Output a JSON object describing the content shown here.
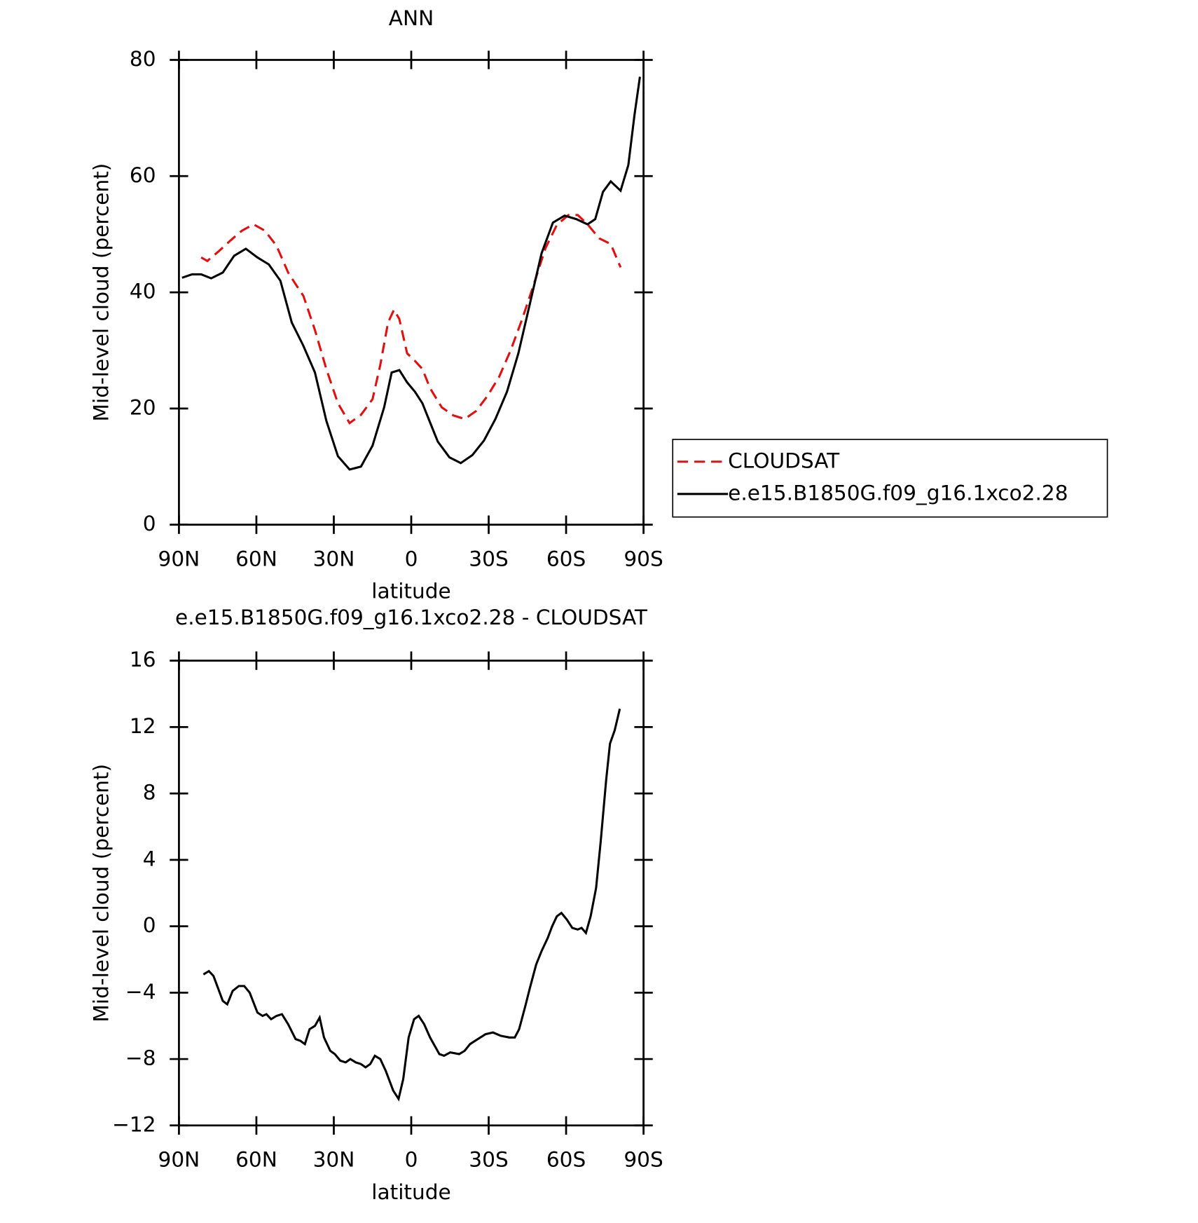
{
  "chart_data": [
    {
      "type": "line",
      "title": "ANN",
      "xlabel": "latitude",
      "ylabel": "Mid-level cloud (percent)",
      "xlim": [
        90,
        -90
      ],
      "ylim": [
        0,
        80
      ],
      "xticks": [
        {
          "value": 90,
          "label": "90N"
        },
        {
          "value": 60,
          "label": "60N"
        },
        {
          "value": 30,
          "label": "30N"
        },
        0,
        {
          "value": -30,
          "label": "30S"
        },
        {
          "value": -60,
          "label": "60S"
        },
        {
          "value": -90,
          "label": "90S"
        }
      ],
      "yticks": [
        0,
        20,
        40,
        60,
        80
      ],
      "legend": "outside right",
      "series": [
        {
          "name": "CLOUDSAT",
          "color": "#e01010",
          "dash": true,
          "x": [
            81.4,
            79.0,
            74.5,
            70.1,
            65.6,
            61.1,
            56.7,
            52.2,
            47.7,
            44.8,
            41.8,
            37.3,
            32.9,
            28.4,
            23.9,
            19.5,
            15.0,
            12.0,
            9.0,
            6.7,
            4.6,
            1.6,
            -1.4,
            -4.3,
            -7.3,
            -11.8,
            -16.3,
            -20.7,
            -25.2,
            -29.6,
            -34.1,
            -38.6,
            -43.0,
            -47.5,
            -52.0,
            -56.4,
            -60.9,
            -64.5,
            -68.3,
            -72.8,
            -77.3,
            -81.1
          ],
          "values": [
            46.0,
            45.4,
            47.1,
            48.9,
            50.6,
            51.7,
            50.6,
            48.0,
            43.4,
            41.4,
            39.4,
            33.5,
            26.8,
            20.9,
            17.5,
            18.9,
            21.6,
            27.5,
            34.8,
            37.0,
            35.4,
            29.5,
            28.2,
            26.8,
            23.5,
            20.2,
            18.8,
            18.2,
            19.6,
            22.2,
            25.5,
            30.1,
            35.4,
            41.4,
            47.6,
            51.6,
            53.3,
            53.3,
            51.7,
            49.3,
            48.3,
            44.3
          ]
        },
        {
          "name": "e.e15.B1850G.f09_g16.1xco2.28",
          "color": "#000000",
          "dash": false,
          "x": [
            88.8,
            84.9,
            81.4,
            77.5,
            73.0,
            68.6,
            64.1,
            59.6,
            55.2,
            50.7,
            46.3,
            41.8,
            37.3,
            32.9,
            28.4,
            23.9,
            19.5,
            15.0,
            10.5,
            7.6,
            4.6,
            1.6,
            -1.4,
            -4.3,
            -7.3,
            -10.3,
            -14.8,
            -19.2,
            -23.7,
            -28.2,
            -32.6,
            -37.1,
            -41.5,
            -46.0,
            -50.5,
            -54.9,
            -59.4,
            -63.9,
            -68.3,
            -71.3,
            -74.3,
            -77.3,
            -81.1,
            -84.1,
            -86.5,
            -88.6
          ],
          "values": [
            42.5,
            43.1,
            43.1,
            42.4,
            43.4,
            46.3,
            47.5,
            46.0,
            44.8,
            42.0,
            34.8,
            30.8,
            26.2,
            17.9,
            11.8,
            9.5,
            10.0,
            13.6,
            20.2,
            26.2,
            26.6,
            24.5,
            22.9,
            20.9,
            17.6,
            14.3,
            11.6,
            10.6,
            12.0,
            14.5,
            18.2,
            22.9,
            29.5,
            38.1,
            46.7,
            52.0,
            53.2,
            52.6,
            51.7,
            52.6,
            57.3,
            59.1,
            57.5,
            61.9,
            70.5,
            77.1
          ]
        }
      ]
    },
    {
      "type": "line",
      "title": "e.e15.B1850G.f09_g16.1xco2.28 - CLOUDSAT",
      "xlabel": "latitude",
      "ylabel": "Mid-level cloud (percent)",
      "xlim": [
        90,
        -90
      ],
      "ylim": [
        -12,
        16
      ],
      "xticks": [
        {
          "value": 90,
          "label": "90N"
        },
        {
          "value": 60,
          "label": "60N"
        },
        {
          "value": 30,
          "label": "30N"
        },
        0,
        {
          "value": -30,
          "label": "30S"
        },
        {
          "value": -60,
          "label": "60S"
        },
        {
          "value": -90,
          "label": "90S"
        }
      ],
      "yticks": [
        {
          "value": -12,
          "label": "−12"
        },
        {
          "value": -8,
          "label": "−8"
        },
        {
          "value": -4,
          "label": "−4"
        },
        0,
        4,
        8,
        12,
        16
      ],
      "series": [
        {
          "color": "#000000",
          "dash": false,
          "x": [
            80.5,
            78.4,
            76.6,
            73.0,
            71.3,
            69.2,
            66.8,
            64.7,
            62.6,
            59.6,
            57.6,
            56.1,
            54.3,
            52.2,
            50.1,
            47.7,
            44.8,
            43.0,
            41.2,
            39.4,
            37.3,
            35.5,
            33.8,
            31.4,
            29.6,
            27.5,
            25.4,
            23.6,
            21.5,
            19.5,
            17.7,
            15.9,
            14.1,
            12.0,
            9.9,
            7.0,
            4.9,
            3.1,
            1.0,
            -1.1,
            -2.9,
            -5.0,
            -7.3,
            -10.9,
            -12.7,
            -15.1,
            -18.6,
            -20.7,
            -22.8,
            -25.8,
            -28.8,
            -31.7,
            -34.7,
            -38.0,
            -40.1,
            -41.8,
            -44.2,
            -46.0,
            -48.4,
            -50.5,
            -52.9,
            -54.6,
            -56.4,
            -58.2,
            -60.3,
            -62.4,
            -64.5,
            -66.0,
            -67.7,
            -69.5,
            -71.6,
            -73.4,
            -75.5,
            -77.0,
            -78.8,
            -80.8
          ],
          "values": [
            -2.9,
            -2.7,
            -3.0,
            -4.5,
            -4.7,
            -3.9,
            -3.6,
            -3.6,
            -4.0,
            -5.2,
            -5.4,
            -5.3,
            -5.6,
            -5.4,
            -5.3,
            -5.9,
            -6.8,
            -6.9,
            -7.1,
            -6.2,
            -6.0,
            -5.5,
            -6.7,
            -7.5,
            -7.7,
            -8.1,
            -8.2,
            -8.0,
            -8.2,
            -8.3,
            -8.5,
            -8.3,
            -7.8,
            -8.0,
            -8.7,
            -9.9,
            -10.4,
            -9.2,
            -6.7,
            -5.6,
            -5.4,
            -5.9,
            -6.7,
            -7.7,
            -7.8,
            -7.6,
            -7.7,
            -7.5,
            -7.1,
            -6.8,
            -6.5,
            -6.4,
            -6.6,
            -6.7,
            -6.7,
            -6.2,
            -4.8,
            -3.7,
            -2.3,
            -1.5,
            -0.7,
            0.0,
            0.6,
            0.8,
            0.4,
            -0.1,
            -0.2,
            -0.1,
            -0.4,
            0.6,
            2.3,
            5.1,
            8.8,
            11.0,
            11.8,
            13.1
          ]
        }
      ]
    }
  ]
}
